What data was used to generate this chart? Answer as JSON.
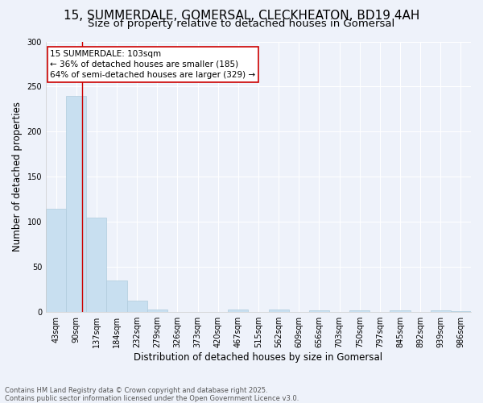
{
  "title": "15, SUMMERDALE, GOMERSAL, CLECKHEATON, BD19 4AH",
  "subtitle": "Size of property relative to detached houses in Gomersal",
  "xlabel": "Distribution of detached houses by size in Gomersal",
  "ylabel": "Number of detached properties",
  "bins": [
    "43sqm",
    "90sqm",
    "137sqm",
    "184sqm",
    "232sqm",
    "279sqm",
    "326sqm",
    "373sqm",
    "420sqm",
    "467sqm",
    "515sqm",
    "562sqm",
    "609sqm",
    "656sqm",
    "703sqm",
    "750sqm",
    "797sqm",
    "845sqm",
    "892sqm",
    "939sqm",
    "986sqm"
  ],
  "values": [
    115,
    240,
    105,
    35,
    13,
    3,
    0,
    0,
    0,
    3,
    0,
    3,
    0,
    2,
    0,
    2,
    0,
    2,
    0,
    2,
    1
  ],
  "bar_color": "#c8dff0",
  "bar_edge_color": "#b0ccdd",
  "red_line_x": 1.28,
  "annotation_text": "15 SUMMERDALE: 103sqm\n← 36% of detached houses are smaller (185)\n64% of semi-detached houses are larger (329) →",
  "annotation_box_color": "#ffffff",
  "annotation_box_edge": "#cc0000",
  "ylim": [
    0,
    300
  ],
  "yticks": [
    0,
    50,
    100,
    150,
    200,
    250,
    300
  ],
  "footer1": "Contains HM Land Registry data © Crown copyright and database right 2025.",
  "footer2": "Contains public sector information licensed under the Open Government Licence v3.0.",
  "bg_color": "#eef2fa",
  "grid_color": "#ffffff",
  "title_fontsize": 11,
  "subtitle_fontsize": 9.5,
  "axis_label_fontsize": 8.5,
  "tick_fontsize": 7,
  "annotation_fontsize": 7.5,
  "footer_fontsize": 6
}
